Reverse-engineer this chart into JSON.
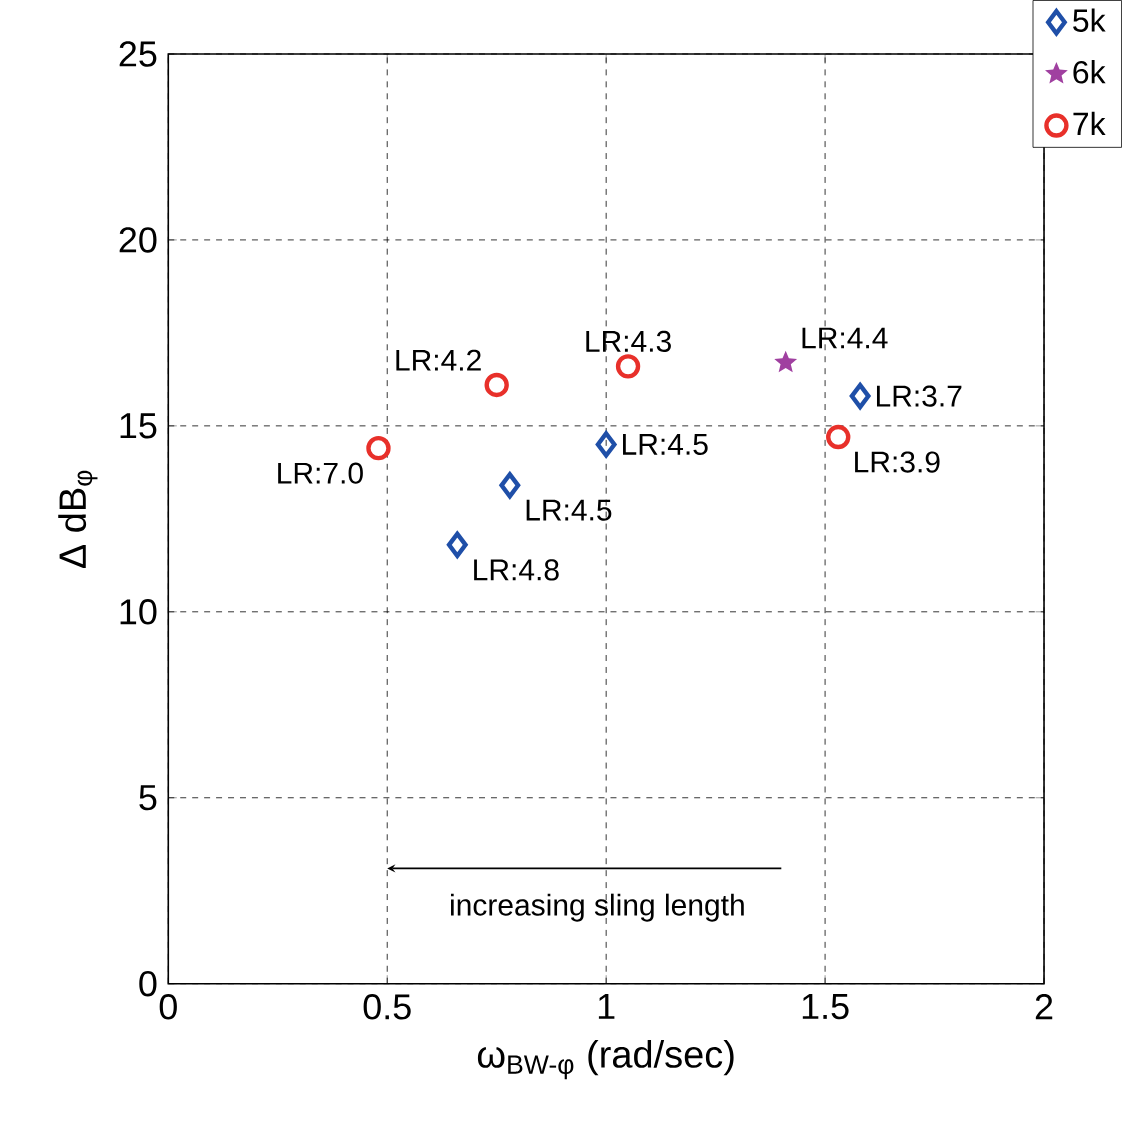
{
  "chart_data": {
    "type": "scatter",
    "xlabel": "ω$_{BW-φ}$ (rad/sec)",
    "ylabel": "Δ dB$_{φ}$",
    "xlim": [
      0,
      2
    ],
    "ylim": [
      0,
      25
    ],
    "xticks": [
      0,
      0.5,
      1,
      1.5,
      2
    ],
    "yticks": [
      0,
      5,
      10,
      15,
      20,
      25
    ],
    "grid": true,
    "legend": "top right",
    "series": [
      {
        "name": "5k",
        "color": "#1f4fa8",
        "marker": "diamond",
        "x": [
          0.66,
          0.78,
          1.0,
          1.58
        ],
        "values": [
          11.8,
          13.4,
          14.5,
          15.8
        ]
      },
      {
        "name": "6k",
        "color": "#a040a0",
        "marker": "star",
        "x": [
          1.41
        ],
        "values": [
          16.7
        ]
      },
      {
        "name": "7k",
        "color": "#e8302a",
        "marker": "circle",
        "x": [
          0.48,
          0.75,
          1.05,
          1.53
        ],
        "values": [
          14.4,
          16.1,
          16.6,
          14.7
        ]
      }
    ],
    "annotations": [
      {
        "text": "LR:4.8",
        "x": 0.66,
        "y": 11.8
      },
      {
        "text": "LR:4.5",
        "x": 0.78,
        "y": 13.4
      },
      {
        "text": "LR:4.5",
        "x": 1.0,
        "y": 14.5
      },
      {
        "text": "LR:3.7",
        "x": 1.58,
        "y": 15.8
      },
      {
        "text": "LR:4.4",
        "x": 1.41,
        "y": 16.7
      },
      {
        "text": "LR:7.0",
        "x": 0.48,
        "y": 14.4
      },
      {
        "text": "LR:4.2",
        "x": 0.75,
        "y": 16.1
      },
      {
        "text": "LR:4.3",
        "x": 1.05,
        "y": 16.6
      },
      {
        "text": "LR:3.9",
        "x": 1.53,
        "y": 14.7
      },
      "increasing sling length"
    ]
  }
}
